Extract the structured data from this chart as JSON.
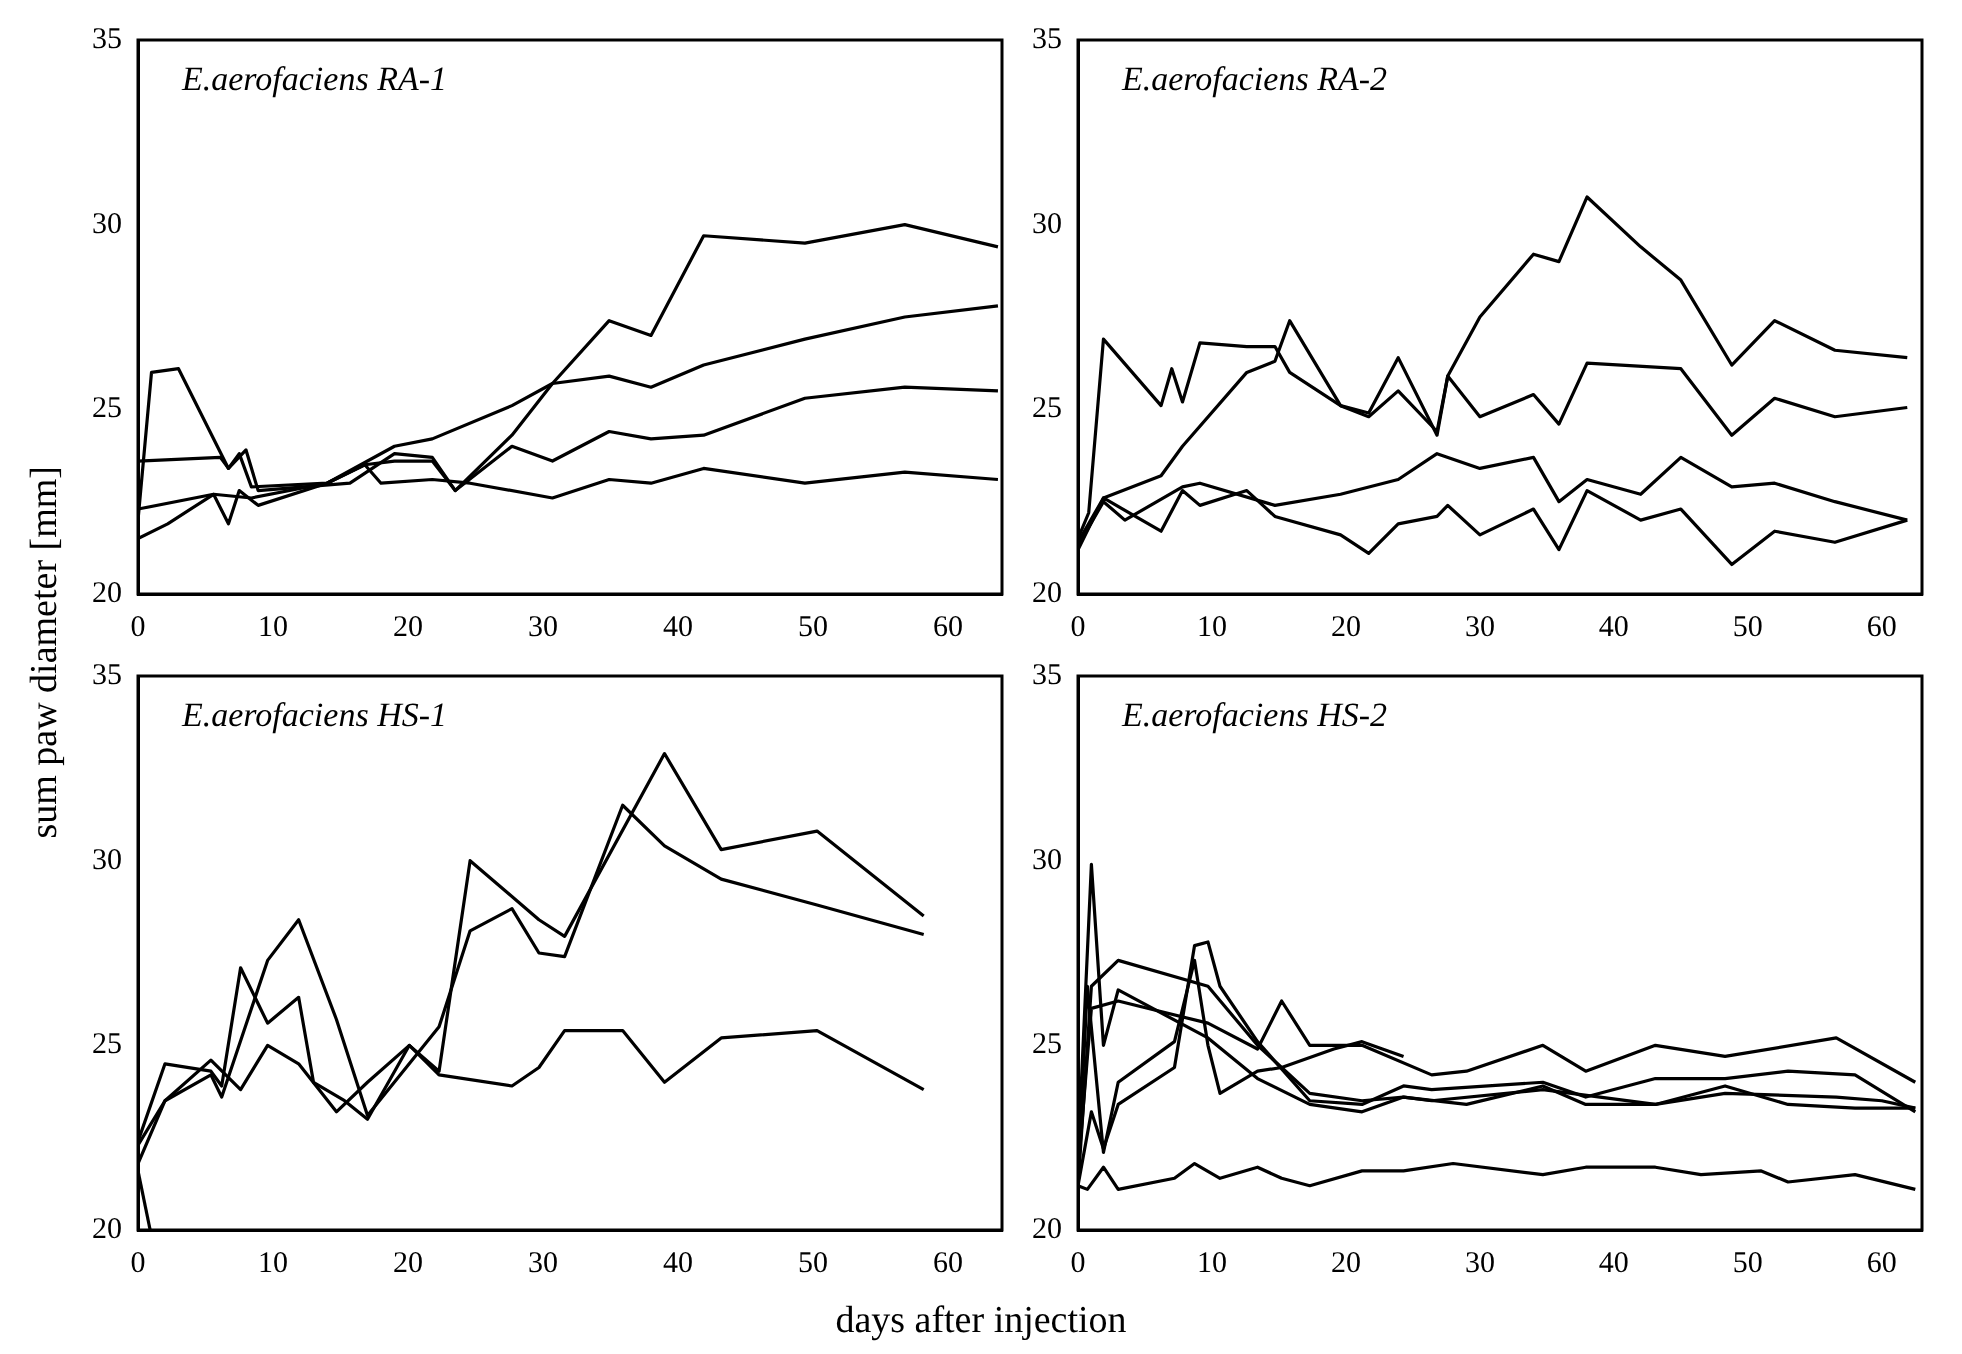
{
  "chart_data": [
    {
      "type": "line",
      "title": "E.aerofaciens RA-1",
      "ylabel": "sum paw diameter [mm]",
      "xlim": [
        0,
        64
      ],
      "xticks": [
        0,
        10,
        20,
        30,
        40,
        50,
        60
      ],
      "ylim": [
        20,
        35
      ],
      "yticks": [
        20,
        25,
        30,
        35
      ],
      "legend": false,
      "series": [
        {
          "color": "#000000",
          "x": [
            0,
            1,
            3,
            6.7,
            8,
            8.9,
            15.7,
            19,
            21.8,
            23.5,
            27.7,
            30.7,
            34.9,
            38,
            41.9,
            49.4,
            56.8,
            63.7
          ],
          "values": [
            22.0,
            26.0,
            26.1,
            23.4,
            23.9,
            22.8,
            23.0,
            23.8,
            23.7,
            22.8,
            24.3,
            25.7,
            27.4,
            27.0,
            29.7,
            29.5,
            30.0,
            29.4
          ]
        },
        {
          "color": "#000000",
          "x": [
            0,
            6.1,
            6.7,
            7.5,
            8.4,
            14,
            19,
            21.8,
            27.7,
            30.7,
            34.9,
            38,
            41.9,
            49.4,
            56.8,
            63.7
          ],
          "values": [
            23.6,
            23.7,
            23.4,
            23.8,
            22.9,
            23.0,
            24.0,
            24.2,
            25.1,
            25.7,
            25.9,
            25.6,
            26.2,
            26.9,
            27.5,
            27.8
          ]
        },
        {
          "color": "#000000",
          "x": [
            0,
            5.6,
            6.7,
            7.5,
            8.9,
            14,
            16.8,
            19,
            21.8,
            23.5,
            27.7,
            30.7,
            34.9,
            38,
            41.9,
            49.4,
            56.8,
            63.7
          ],
          "values": [
            22.3,
            22.7,
            21.9,
            22.8,
            22.4,
            23.0,
            23.5,
            23.6,
            23.6,
            22.8,
            24.0,
            23.6,
            24.4,
            24.2,
            24.3,
            25.3,
            25.6,
            25.5
          ]
        },
        {
          "color": "#000000",
          "x": [
            0,
            2.2,
            5.6,
            8.4,
            14,
            16.8,
            18,
            21.8,
            24.6,
            30.7,
            34.9,
            38,
            41.9,
            49.4,
            56.8,
            63.7
          ],
          "values": [
            21.5,
            21.9,
            22.7,
            22.6,
            23.0,
            23.5,
            23.0,
            23.1,
            23.0,
            22.6,
            23.1,
            23.0,
            23.4,
            23.0,
            23.3,
            23.1
          ]
        }
      ]
    },
    {
      "type": "line",
      "title": "E.aerofaciens RA-2",
      "xlim": [
        0,
        63
      ],
      "xticks": [
        0,
        10,
        20,
        30,
        40,
        50,
        60
      ],
      "ylim": [
        20,
        35
      ],
      "yticks": [
        20,
        25,
        30,
        35
      ],
      "legend": false,
      "series": [
        {
          "color": "#000000",
          "x": [
            0,
            0.8,
            1.9,
            6.2,
            7,
            7.8,
            9.1,
            12.6,
            14.7,
            15.8,
            19.6,
            21.7,
            23.9,
            26.8,
            27.6,
            30,
            34,
            35.9,
            38,
            42,
            45,
            48.8,
            52,
            56.5,
            61.9
          ],
          "values": [
            21.5,
            22.2,
            26.9,
            25.1,
            26.1,
            25.2,
            26.8,
            26.7,
            26.7,
            26.0,
            25.1,
            24.8,
            25.5,
            24.4,
            25.9,
            27.5,
            29.2,
            29.0,
            30.75,
            29.4,
            28.5,
            26.2,
            27.4,
            26.6,
            26.4
          ]
        },
        {
          "color": "#000000",
          "x": [
            0,
            1.9,
            6.2,
            7.8,
            12.6,
            14.7,
            15.8,
            19.6,
            21.7,
            23.9,
            26.8,
            27.6,
            30,
            34,
            35.9,
            38,
            45,
            48.8,
            52,
            56.5,
            61.9
          ],
          "values": [
            21.4,
            22.6,
            23.2,
            24.0,
            26.0,
            26.3,
            27.4,
            25.1,
            24.9,
            26.4,
            24.3,
            25.9,
            24.8,
            25.4,
            24.6,
            26.25,
            26.1,
            24.3,
            25.3,
            24.8,
            25.05
          ]
        },
        {
          "color": "#000000",
          "x": [
            0,
            1.9,
            3.5,
            7.8,
            9.1,
            14.7,
            19.6,
            23.9,
            26.8,
            30,
            34,
            35.9,
            38,
            42,
            45,
            48.8,
            52,
            56.5,
            61.9
          ],
          "values": [
            21.3,
            22.5,
            22.0,
            22.9,
            23.0,
            22.4,
            22.7,
            23.1,
            23.8,
            23.4,
            23.7,
            22.5,
            23.1,
            22.7,
            23.7,
            22.9,
            23.0,
            22.5,
            22.0
          ]
        },
        {
          "color": "#000000",
          "x": [
            0,
            1.9,
            6.2,
            7.8,
            9.1,
            12.6,
            14.7,
            19.6,
            21.7,
            23.9,
            26.8,
            27.6,
            30,
            34,
            35.9,
            38,
            42,
            45,
            48.8,
            52,
            56.5,
            61.9
          ],
          "values": [
            21.2,
            22.6,
            21.7,
            22.8,
            22.4,
            22.8,
            22.1,
            21.6,
            21.1,
            21.9,
            22.1,
            22.4,
            21.6,
            22.3,
            21.2,
            22.8,
            22.0,
            22.3,
            20.8,
            21.7,
            21.4,
            22.0
          ]
        }
      ]
    },
    {
      "type": "line",
      "title": "E.aerofaciens HS-1",
      "xlabel": "days after injection",
      "xlim": [
        0,
        64
      ],
      "xticks": [
        0,
        10,
        20,
        30,
        40,
        50,
        60
      ],
      "ylim": [
        20,
        35
      ],
      "yticks": [
        20,
        25,
        30,
        35
      ],
      "legend": false,
      "series": [
        {
          "color": "#000000",
          "x": [
            0,
            2,
            5.4,
            6.2,
            7.6,
            9.6,
            11.9,
            13,
            15.3,
            17,
            20.1,
            22.3,
            24.6,
            29.7,
            31.6,
            39,
            43.2,
            50.3,
            58.2
          ],
          "values": [
            22.4,
            24.5,
            24.3,
            23.9,
            27.1,
            25.6,
            26.3,
            24.0,
            23.5,
            23.0,
            25.0,
            24.3,
            30.0,
            28.4,
            27.95,
            32.9,
            30.3,
            30.8,
            28.5
          ]
        },
        {
          "color": "#000000",
          "x": [
            0,
            2,
            5.4,
            6.2,
            9.6,
            11.9,
            14.7,
            17,
            22.3,
            24.6,
            27.7,
            29.7,
            31.6,
            35.9,
            39,
            43.2,
            50.3,
            58.2
          ],
          "values": [
            22.3,
            23.5,
            24.2,
            23.6,
            27.3,
            28.4,
            25.7,
            23.1,
            25.5,
            28.1,
            28.7,
            27.5,
            27.4,
            31.5,
            30.4,
            29.5,
            28.8,
            28.0
          ]
        },
        {
          "color": "#000000",
          "x": [
            0,
            2,
            5.4,
            7.6,
            9.6,
            11.9,
            14.7,
            17,
            20.1,
            22.3,
            27.7,
            29.7,
            31.6,
            35.9,
            39,
            43.2,
            50.3,
            58.2
          ],
          "values": [
            21.8,
            23.5,
            24.6,
            23.8,
            25.0,
            24.5,
            23.2,
            24.0,
            25.0,
            24.2,
            23.9,
            24.4,
            25.4,
            25.4,
            24.0,
            25.2,
            25.4,
            23.8
          ]
        },
        {
          "color": "#000000",
          "x": [
            0,
            0.9
          ],
          "values": [
            21.6,
            20.0
          ]
        }
      ]
    },
    {
      "type": "line",
      "title": "E.aerofaciens HS-2",
      "xlim": [
        0,
        63
      ],
      "xticks": [
        0,
        10,
        20,
        30,
        40,
        50,
        60
      ],
      "ylim": [
        20,
        35
      ],
      "yticks": [
        20,
        25,
        30,
        35
      ],
      "legend": false,
      "series": [
        {
          "color": "#000000",
          "x": [
            0,
            1,
            1.9,
            3,
            9.7,
            13.4,
            17.3,
            21.2,
            24.3,
            26.4,
            34.7,
            43.1,
            48.3,
            56.6,
            60,
            62.5
          ],
          "values": [
            22.0,
            29.9,
            25.0,
            26.5,
            25.2,
            24.1,
            23.4,
            23.2,
            23.6,
            23.5,
            23.8,
            23.4,
            23.7,
            23.6,
            23.5,
            23.3
          ]
        },
        {
          "color": "#000000",
          "x": [
            0,
            0.7,
            1.9,
            3,
            7.2,
            8.7,
            9.7,
            10.6,
            13.4,
            15.2,
            19.1,
            21.2,
            24.3
          ],
          "values": [
            21.5,
            26.6,
            22.1,
            24.0,
            25.1,
            27.3,
            25.0,
            23.7,
            24.3,
            24.4,
            24.9,
            25.1,
            24.7
          ]
        },
        {
          "color": "#000000",
          "x": [
            0,
            1,
            1.9,
            3,
            7.2,
            8.7,
            9.7,
            10.6,
            13.4,
            17.3,
            21.2,
            24.3,
            26.4,
            34.7,
            37.9,
            43.1,
            48.3,
            53,
            58,
            62.5
          ],
          "values": [
            21.2,
            23.2,
            22.2,
            23.4,
            24.4,
            27.7,
            27.8,
            26.6,
            25.1,
            23.5,
            23.4,
            23.9,
            23.8,
            24.0,
            23.6,
            24.1,
            24.1,
            24.3,
            24.2,
            23.2
          ]
        },
        {
          "color": "#000000",
          "x": [
            0,
            1,
            3,
            9.7,
            13.4,
            15.2,
            17.3,
            21.2,
            24.3,
            29,
            34.7,
            37.9,
            43.1,
            48.3,
            53,
            58,
            62.5
          ],
          "values": [
            21.2,
            26.6,
            27.3,
            26.6,
            25.0,
            24.4,
            23.7,
            23.5,
            23.6,
            23.4,
            23.9,
            23.4,
            23.4,
            23.9,
            23.4,
            23.3,
            23.3
          ]
        },
        {
          "color": "#000000",
          "x": [
            0,
            1,
            3,
            9.7,
            13.4,
            15.2,
            17.3,
            21.2,
            26.4,
            29,
            34.7,
            37.9,
            43.1,
            48.3,
            56.6,
            62.5
          ],
          "values": [
            21.6,
            26.0,
            26.2,
            25.6,
            24.9,
            26.2,
            25.0,
            25.0,
            24.2,
            24.3,
            25.0,
            24.3,
            25.0,
            24.7,
            25.2,
            24.0
          ]
        },
        {
          "color": "#000000",
          "x": [
            0,
            0.7,
            1.9,
            3,
            7.2,
            8.7,
            10.6,
            13.4,
            15.2,
            17.3,
            21.2,
            24.3,
            28,
            34.7,
            37.9,
            43.1,
            46.5,
            51,
            53,
            58,
            62.5
          ],
          "values": [
            21.2,
            21.1,
            21.7,
            21.1,
            21.4,
            21.8,
            21.4,
            21.7,
            21.4,
            21.2,
            21.6,
            21.6,
            21.8,
            21.5,
            21.7,
            21.7,
            21.5,
            21.6,
            21.3,
            21.5,
            21.1
          ]
        }
      ]
    }
  ]
}
